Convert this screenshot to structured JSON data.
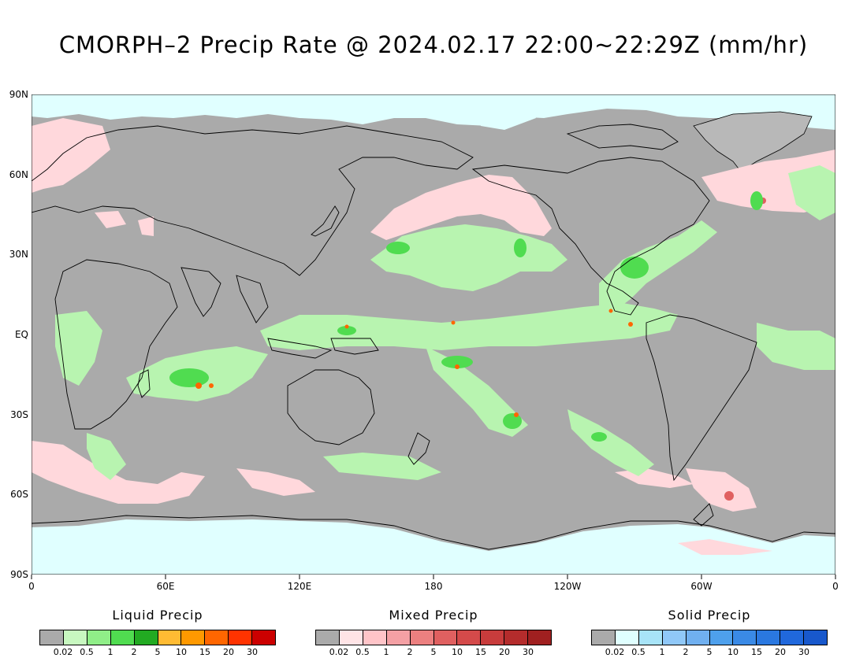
{
  "title": "CMORPH–2 Precip Rate @ 2024.02.17 22:00~22:29Z (mm/hr)",
  "lat_labels": [
    "90N",
    "60N",
    "30N",
    "EQ",
    "30S",
    "60S",
    "90S"
  ],
  "lon_labels": [
    "0",
    "60E",
    "120E",
    "180",
    "120W",
    "60W",
    "0"
  ],
  "legends": [
    {
      "title": "Liquid Precip",
      "colors": [
        "#aaaaaa",
        "#c8f8c0",
        "#90ee88",
        "#50dc50",
        "#22aa22",
        "#ffbb33",
        "#ff9900",
        "#ff6600",
        "#ff3300",
        "#cc0000"
      ],
      "ticks": [
        "0.02",
        "0.5",
        "1",
        "2",
        "5",
        "10",
        "15",
        "20",
        "30"
      ]
    },
    {
      "title": "Mixed Precip",
      "colors": [
        "#aaaaaa",
        "#ffe4e6",
        "#ffc4c8",
        "#f4a0a4",
        "#ec8080",
        "#e06060",
        "#d44a4a",
        "#c83c3c",
        "#b42c2c",
        "#a02020"
      ],
      "ticks": [
        "0.02",
        "0.5",
        "1",
        "2",
        "5",
        "10",
        "15",
        "20",
        "30"
      ]
    },
    {
      "title": "Solid Precip",
      "colors": [
        "#aaaaaa",
        "#e0ffff",
        "#a8e4f8",
        "#90c8f8",
        "#70b0f0",
        "#4ea0ec",
        "#3a8ae6",
        "#2a78e0",
        "#2068dc",
        "#1858cc"
      ],
      "ticks": [
        "0.02",
        "0.5",
        "1",
        "2",
        "5",
        "10",
        "15",
        "20",
        "30"
      ]
    }
  ]
}
